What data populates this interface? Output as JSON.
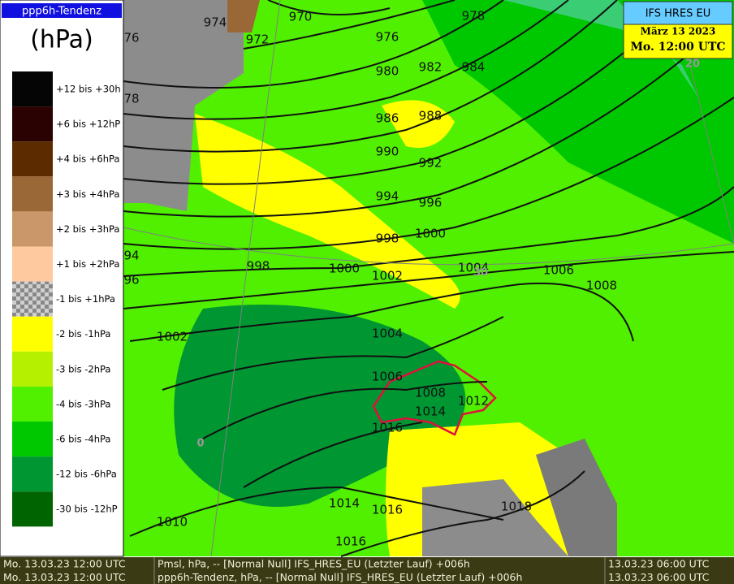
{
  "legend": {
    "title": "ppp6h-Tendenz",
    "unit": "(hPa)",
    "items": [
      {
        "label": "+12 bis +30h",
        "color": "#050505"
      },
      {
        "label": "+6 bis +12hP",
        "color": "#2a0202"
      },
      {
        "label": "+4 bis +6hPa",
        "color": "#5c2c00"
      },
      {
        "label": "+3 bis +4hPa",
        "color": "#9a6836"
      },
      {
        "label": "+2 bis +3hPa",
        "color": "#c9976a"
      },
      {
        "label": "+1 bis +2hPa",
        "color": "#ffc9a0"
      },
      {
        "label": "-1 bis +1hPa",
        "color": "checker"
      },
      {
        "label": "-2 bis -1hPa",
        "color": "#ffff00"
      },
      {
        "label": "-3 bis -2hPa",
        "color": "#b4f000"
      },
      {
        "label": "-4 bis -3hPa",
        "color": "#50f000"
      },
      {
        "label": "-6 bis -4hPa",
        "color": "#00c800"
      },
      {
        "label": "-12 bis -6hPa",
        "color": "#009632"
      },
      {
        "label": "-30 bis -12hP",
        "color": "#006400"
      }
    ]
  },
  "info": {
    "model": "IFS HRES EU",
    "date": "März 13 2023",
    "time": "Mo. 12:00 UTC"
  },
  "map": {
    "isobar_labels": [
      "970",
      "974",
      "76",
      "972",
      "976",
      "978",
      "980",
      "982",
      "984",
      "78",
      "986",
      "988",
      "990",
      "992",
      "994",
      "996",
      "998",
      "1000",
      "94",
      "998",
      "1000",
      "1002",
      "1004",
      "1006",
      "1008",
      "96",
      "1002",
      "1004",
      "1006",
      "1008",
      "1012",
      "1014",
      "1016",
      "1014",
      "1016",
      "1018",
      "1010",
      "1016"
    ],
    "grid_labels": [
      "20",
      "30",
      "0"
    ]
  },
  "footer": [
    {
      "valid": "Mo. 13.03.23 12:00 UTC",
      "field": "Pmsl, hPa, -- [Normal Null] IFS_HRES_EU (Letzter Lauf) +006h",
      "run": "13.03.23 06:00 UTC"
    },
    {
      "valid": "Mo. 13.03.23 12:00 UTC",
      "field": "ppp6h-Tendenz, hPa, -- [Normal Null] IFS_HRES_EU (Letzter Lauf) +006h",
      "run": "13.03.23 06:00 UTC"
    }
  ]
}
